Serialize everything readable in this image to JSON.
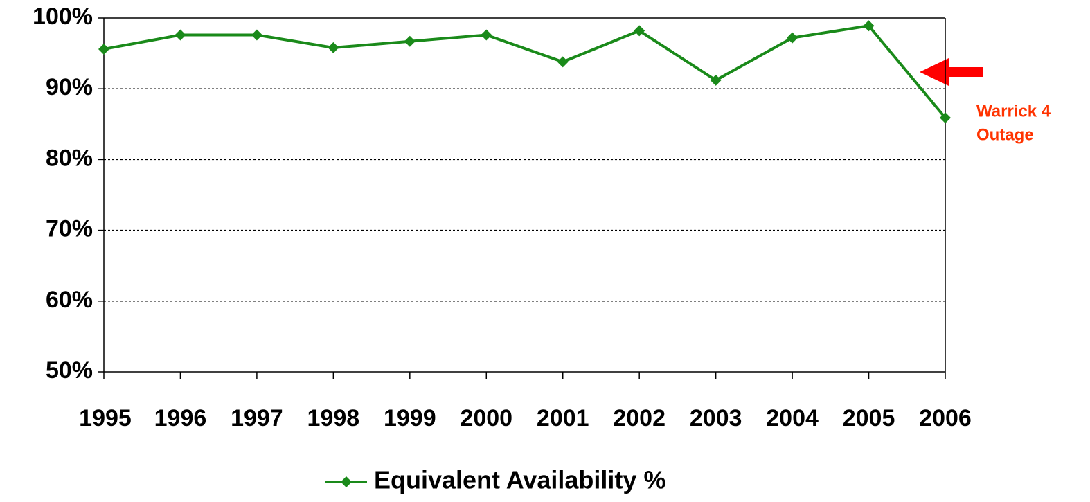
{
  "chart_data": {
    "type": "line",
    "categories": [
      "1995",
      "1996",
      "1997",
      "1998",
      "1999",
      "2000",
      "2001",
      "2002",
      "2003",
      "2004",
      "2005",
      "2006"
    ],
    "series": [
      {
        "name": "Equivalent Availability %",
        "color": "#1a8a1a",
        "values": [
          95.6,
          97.6,
          97.6,
          95.8,
          96.7,
          97.6,
          93.8,
          98.2,
          91.2,
          97.2,
          98.9,
          85.9
        ]
      }
    ],
    "ylim": [
      50,
      100
    ],
    "yticks": [
      {
        "value": 50,
        "label": "50%"
      },
      {
        "value": 60,
        "label": "60%"
      },
      {
        "value": 70,
        "label": "70%"
      },
      {
        "value": 80,
        "label": "80%"
      },
      {
        "value": 90,
        "label": "90%"
      },
      {
        "value": 100,
        "label": "100%"
      }
    ],
    "grid": true,
    "legend": "bottom",
    "annotation": {
      "lines": [
        "Warrick 4",
        "Outage"
      ],
      "color": "#ff3300"
    }
  }
}
